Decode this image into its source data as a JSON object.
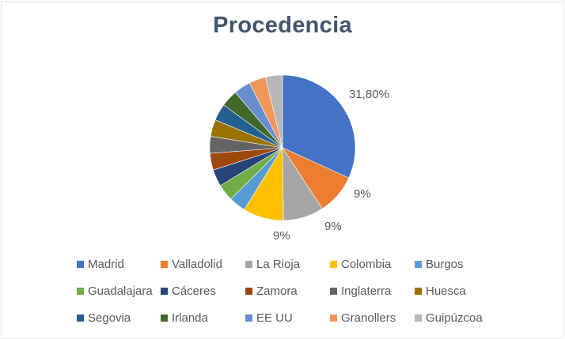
{
  "title": "Procedencia",
  "chart_data": {
    "type": "pie",
    "title": "Procedencia",
    "categories": [
      "Madrid",
      "Valladolid",
      "La Rioja",
      "Colombia",
      "Burgos",
      "Guadalajara",
      "Cáceres",
      "Zamora",
      "Inglaterra",
      "Huesca",
      "Segovia",
      "Irlanda",
      "EE UU",
      "Granollers",
      "Guipúzcoa"
    ],
    "values": [
      31.8,
      9,
      9,
      9,
      3.745,
      3.745,
      3.745,
      3.745,
      3.745,
      3.745,
      3.745,
      3.745,
      3.745,
      3.745,
      3.745
    ],
    "colors": [
      "#4472c4",
      "#ed7d31",
      "#a5a5a5",
      "#ffc000",
      "#5b9bd5",
      "#70ad47",
      "#264478",
      "#9e480e",
      "#636363",
      "#997300",
      "#255e91",
      "#43682b",
      "#698ed0",
      "#f1975a",
      "#b7b7b7"
    ],
    "data_labels": [
      "31,80%",
      "9%",
      "9%",
      "9%"
    ],
    "legend_position": "bottom"
  },
  "labels": {
    "madrid": "31,80%",
    "valladolid": "9%",
    "larioja": "9%",
    "colombia": "9%"
  },
  "legend": [
    {
      "label": "Madrid",
      "color": "#4472c4"
    },
    {
      "label": "Valladolid",
      "color": "#ed7d31"
    },
    {
      "label": "La Rioja",
      "color": "#a5a5a5"
    },
    {
      "label": "Colombia",
      "color": "#ffc000"
    },
    {
      "label": "Burgos",
      "color": "#5b9bd5"
    },
    {
      "label": "Guadalajara",
      "color": "#70ad47"
    },
    {
      "label": "Cáceres",
      "color": "#264478"
    },
    {
      "label": "Zamora",
      "color": "#9e480e"
    },
    {
      "label": "Inglaterra",
      "color": "#636363"
    },
    {
      "label": "Huesca",
      "color": "#997300"
    },
    {
      "label": "Segovia",
      "color": "#255e91"
    },
    {
      "label": "Irlanda",
      "color": "#43682b"
    },
    {
      "label": "EE UU",
      "color": "#698ed0"
    },
    {
      "label": "Granollers",
      "color": "#f1975a"
    },
    {
      "label": "Guipúzcoa",
      "color": "#b7b7b7"
    }
  ]
}
